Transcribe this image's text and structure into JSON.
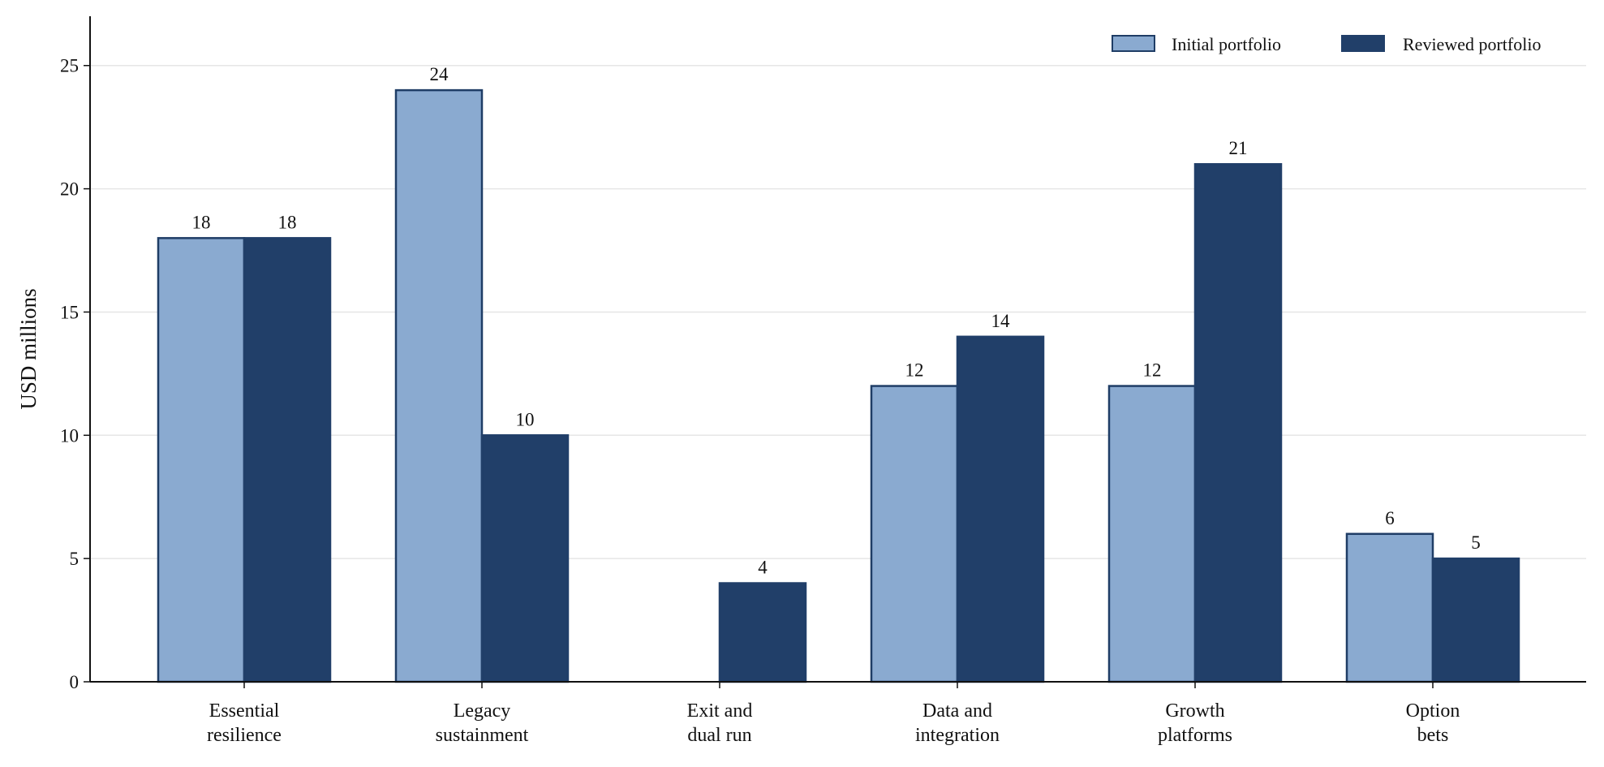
{
  "chart_data": {
    "type": "bar",
    "title": "",
    "xlabel": "",
    "ylabel": "USD millions",
    "ylim": [
      0,
      27
    ],
    "yticks": [
      0,
      5,
      10,
      15,
      20,
      25
    ],
    "grid": "horizontal",
    "legend_position": "top-right",
    "categories": [
      [
        "Essential",
        "resilience"
      ],
      [
        "Legacy",
        "sustainment"
      ],
      [
        "Exit and",
        "dual run"
      ],
      [
        "Data and",
        "integration"
      ],
      [
        "Growth",
        "platforms"
      ],
      [
        "Option",
        "bets"
      ]
    ],
    "series": [
      {
        "name": "Initial portfolio",
        "color": "#8aaad0",
        "edge": "#1f3d66",
        "values": [
          18,
          24,
          0,
          12,
          12,
          6
        ]
      },
      {
        "name": "Reviewed portfolio",
        "color": "#213f69",
        "edge": "#213f69",
        "values": [
          18,
          10,
          4,
          14,
          21,
          5
        ]
      }
    ]
  }
}
